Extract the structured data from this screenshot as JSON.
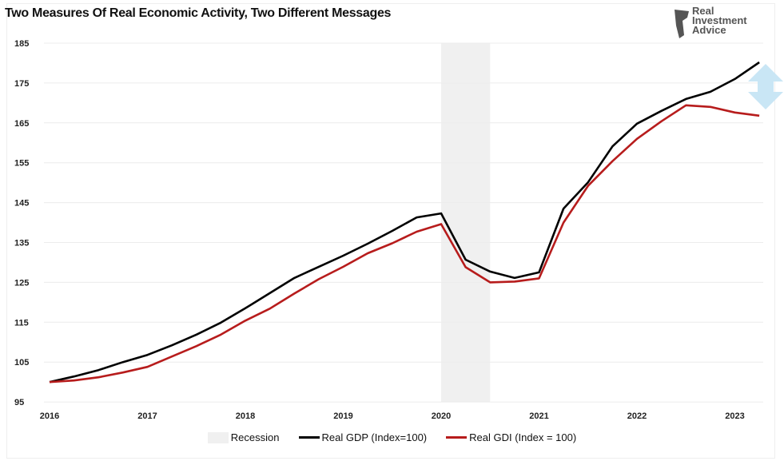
{
  "chart_data": {
    "type": "line",
    "title": "Two Measures Of Real Economic Activity, Two Different Messages",
    "xlabel": "",
    "ylabel": "",
    "ylim": [
      95,
      185
    ],
    "yticks": [
      "95",
      "105",
      "115",
      "125",
      "135",
      "145",
      "155",
      "165",
      "175",
      "185"
    ],
    "xticks": [
      "2016",
      "2017",
      "2018",
      "2019",
      "2020",
      "2021",
      "2022",
      "2023"
    ],
    "xlim": [
      2016,
      2023.25
    ],
    "grid": "horizontal",
    "legend_position": "bottom",
    "recession": {
      "label": "Recession",
      "start": 2020.0,
      "end": 2020.5,
      "color": "#f0f0f0"
    },
    "x": [
      2016.0,
      2016.25,
      2016.5,
      2016.75,
      2017.0,
      2017.25,
      2017.5,
      2017.75,
      2018.0,
      2018.25,
      2018.5,
      2018.75,
      2019.0,
      2019.25,
      2019.5,
      2019.75,
      2020.0,
      2020.25,
      2020.5,
      2020.75,
      2021.0,
      2021.25,
      2021.5,
      2021.75,
      2022.0,
      2022.25,
      2022.5,
      2022.75,
      2023.0,
      2023.25
    ],
    "series": [
      {
        "name": "Real GDP (Index=100)",
        "color": "#000000",
        "values": [
          100,
          101.4,
          103,
          105,
          106.8,
          109.2,
          111.9,
          114.9,
          118.5,
          122.3,
          126.1,
          128.9,
          131.7,
          134.7,
          137.9,
          141.3,
          142.3,
          130.7,
          127.7,
          126.1,
          127.5,
          143.5,
          150.1,
          159.1,
          164.8,
          168,
          171,
          172.8,
          176,
          180.2
        ]
      },
      {
        "name": "Real GDI (Index = 100)",
        "color": "#b71c1c",
        "values": [
          100,
          100.4,
          101.2,
          102.4,
          103.8,
          106.4,
          109,
          111.9,
          115.4,
          118.4,
          122.2,
          125.8,
          128.9,
          132.3,
          134.8,
          137.7,
          139.6,
          128.8,
          125,
          125.2,
          126,
          140,
          149.2,
          155.4,
          161,
          165.4,
          169.4,
          169,
          167.6,
          166.8
        ]
      }
    ],
    "annotation": {
      "type": "double-arrow",
      "color": "#c9e6f5"
    }
  },
  "logo": {
    "text": "Real Investment Advice"
  }
}
